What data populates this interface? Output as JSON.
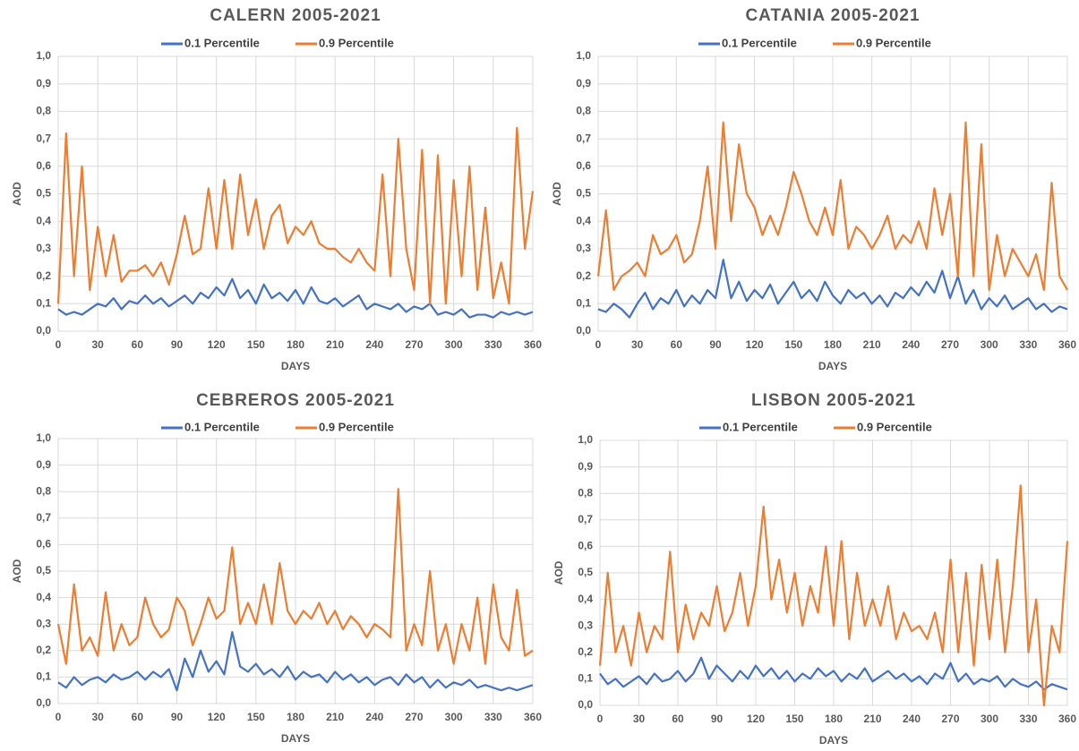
{
  "chart_data": [
    {
      "type": "line",
      "title": "CALERN 2005-2021",
      "xlabel": "DAYS",
      "ylabel": "AOD",
      "grid": true,
      "legend": "top",
      "xlim": [
        0,
        360
      ],
      "ylim": [
        0,
        1
      ],
      "xticks": [
        0,
        30,
        60,
        90,
        120,
        150,
        180,
        210,
        240,
        270,
        300,
        330,
        360
      ],
      "yticks": [
        {
          "value": 0,
          "label": "0,0"
        },
        {
          "value": 0.1,
          "label": "0,1"
        },
        {
          "value": 0.2,
          "label": "0,2"
        },
        {
          "value": 0.3,
          "label": "0,3"
        },
        {
          "value": 0.4,
          "label": "0,4"
        },
        {
          "value": 0.5,
          "label": "0,5"
        },
        {
          "value": 0.6,
          "label": "0,6"
        },
        {
          "value": 0.7,
          "label": "0,7"
        },
        {
          "value": 0.8,
          "label": "0,8"
        },
        {
          "value": 0.9,
          "label": "0,9"
        },
        {
          "value": 1,
          "label": "1,0"
        }
      ],
      "x": [
        0,
        6,
        12,
        18,
        24,
        30,
        36,
        42,
        48,
        54,
        60,
        66,
        72,
        78,
        84,
        90,
        96,
        102,
        108,
        114,
        120,
        126,
        132,
        138,
        144,
        150,
        156,
        162,
        168,
        174,
        180,
        186,
        192,
        198,
        204,
        210,
        216,
        222,
        228,
        234,
        240,
        246,
        252,
        258,
        264,
        270,
        276,
        282,
        288,
        294,
        300,
        306,
        312,
        318,
        324,
        330,
        336,
        342,
        348,
        354,
        360
      ],
      "series": [
        {
          "name": "0.1 Percentile",
          "color": "#4472c4",
          "values": [
            0.08,
            0.06,
            0.07,
            0.06,
            0.08,
            0.1,
            0.09,
            0.12,
            0.08,
            0.11,
            0.1,
            0.13,
            0.1,
            0.12,
            0.09,
            0.11,
            0.13,
            0.1,
            0.14,
            0.12,
            0.16,
            0.13,
            0.19,
            0.12,
            0.15,
            0.1,
            0.17,
            0.12,
            0.14,
            0.11,
            0.15,
            0.1,
            0.16,
            0.11,
            0.1,
            0.12,
            0.09,
            0.11,
            0.13,
            0.08,
            0.1,
            0.09,
            0.08,
            0.1,
            0.07,
            0.09,
            0.08,
            0.1,
            0.06,
            0.07,
            0.06,
            0.08,
            0.05,
            0.06,
            0.06,
            0.05,
            0.07,
            0.06,
            0.07,
            0.06,
            0.07
          ]
        },
        {
          "name": "0.9 Percentile",
          "color": "#ed7d31",
          "values": [
            0.1,
            0.72,
            0.2,
            0.6,
            0.15,
            0.38,
            0.2,
            0.35,
            0.18,
            0.22,
            0.22,
            0.24,
            0.2,
            0.25,
            0.17,
            0.28,
            0.42,
            0.28,
            0.3,
            0.52,
            0.3,
            0.55,
            0.3,
            0.57,
            0.35,
            0.48,
            0.3,
            0.42,
            0.46,
            0.32,
            0.38,
            0.35,
            0.4,
            0.32,
            0.3,
            0.3,
            0.27,
            0.25,
            0.3,
            0.25,
            0.22,
            0.57,
            0.2,
            0.7,
            0.3,
            0.15,
            0.66,
            0.1,
            0.64,
            0.1,
            0.55,
            0.2,
            0.6,
            0.15,
            0.45,
            0.12,
            0.25,
            0.1,
            0.74,
            0.3,
            0.51
          ]
        }
      ]
    },
    {
      "type": "line",
      "title": "CATANIA 2005-2021",
      "xlabel": "DAYS",
      "ylabel": "AOD",
      "grid": true,
      "legend": "top",
      "xlim": [
        0,
        360
      ],
      "ylim": [
        0,
        1
      ],
      "xticks": [
        0,
        30,
        60,
        90,
        120,
        150,
        180,
        210,
        240,
        270,
        300,
        330,
        360
      ],
      "yticks": [
        {
          "value": 0,
          "label": "0,0"
        },
        {
          "value": 0.1,
          "label": "0,1"
        },
        {
          "value": 0.2,
          "label": "0,2"
        },
        {
          "value": 0.3,
          "label": "0,3"
        },
        {
          "value": 0.4,
          "label": "0,4"
        },
        {
          "value": 0.5,
          "label": "0,5"
        },
        {
          "value": 0.6,
          "label": "0,6"
        },
        {
          "value": 0.7,
          "label": "0,7"
        },
        {
          "value": 0.8,
          "label": "0,8"
        },
        {
          "value": 0.9,
          "label": "0,9"
        },
        {
          "value": 1,
          "label": "1,0"
        }
      ],
      "x": [
        0,
        6,
        12,
        18,
        24,
        30,
        36,
        42,
        48,
        54,
        60,
        66,
        72,
        78,
        84,
        90,
        96,
        102,
        108,
        114,
        120,
        126,
        132,
        138,
        144,
        150,
        156,
        162,
        168,
        174,
        180,
        186,
        192,
        198,
        204,
        210,
        216,
        222,
        228,
        234,
        240,
        246,
        252,
        258,
        264,
        270,
        276,
        282,
        288,
        294,
        300,
        306,
        312,
        318,
        324,
        330,
        336,
        342,
        348,
        354,
        360
      ],
      "series": [
        {
          "name": "0.1 Percentile",
          "color": "#4472c4",
          "values": [
            0.08,
            0.07,
            0.1,
            0.08,
            0.05,
            0.1,
            0.14,
            0.08,
            0.12,
            0.1,
            0.15,
            0.09,
            0.13,
            0.1,
            0.15,
            0.12,
            0.26,
            0.12,
            0.18,
            0.11,
            0.15,
            0.12,
            0.17,
            0.1,
            0.14,
            0.18,
            0.12,
            0.15,
            0.11,
            0.18,
            0.13,
            0.1,
            0.15,
            0.12,
            0.14,
            0.1,
            0.13,
            0.09,
            0.14,
            0.12,
            0.16,
            0.13,
            0.18,
            0.14,
            0.22,
            0.12,
            0.2,
            0.1,
            0.15,
            0.08,
            0.12,
            0.09,
            0.13,
            0.08,
            0.1,
            0.12,
            0.08,
            0.1,
            0.07,
            0.09,
            0.08
          ]
        },
        {
          "name": "0.9 Percentile",
          "color": "#ed7d31",
          "values": [
            0.2,
            0.44,
            0.15,
            0.2,
            0.22,
            0.25,
            0.2,
            0.35,
            0.28,
            0.3,
            0.35,
            0.25,
            0.28,
            0.4,
            0.6,
            0.3,
            0.76,
            0.4,
            0.68,
            0.5,
            0.45,
            0.35,
            0.42,
            0.35,
            0.45,
            0.58,
            0.5,
            0.4,
            0.35,
            0.45,
            0.35,
            0.55,
            0.3,
            0.38,
            0.35,
            0.3,
            0.35,
            0.42,
            0.3,
            0.35,
            0.32,
            0.4,
            0.3,
            0.52,
            0.35,
            0.5,
            0.2,
            0.76,
            0.2,
            0.68,
            0.15,
            0.35,
            0.2,
            0.3,
            0.25,
            0.2,
            0.28,
            0.15,
            0.54,
            0.2,
            0.15
          ]
        }
      ]
    },
    {
      "type": "line",
      "title": "CEBREROS 2005-2021",
      "xlabel": "DAYS",
      "ylabel": "AOD",
      "grid": true,
      "legend": "top",
      "xlim": [
        0,
        360
      ],
      "ylim": [
        0,
        1
      ],
      "xticks": [
        0,
        30,
        60,
        90,
        120,
        150,
        180,
        210,
        240,
        270,
        300,
        330,
        360
      ],
      "yticks": [
        {
          "value": 0,
          "label": "0,0"
        },
        {
          "value": 0.1,
          "label": "0,1"
        },
        {
          "value": 0.2,
          "label": "0,2"
        },
        {
          "value": 0.3,
          "label": "0,3"
        },
        {
          "value": 0.4,
          "label": "0,4"
        },
        {
          "value": 0.5,
          "label": "0,5"
        },
        {
          "value": 0.6,
          "label": "0,6"
        },
        {
          "value": 0.7,
          "label": "0,7"
        },
        {
          "value": 0.8,
          "label": "0,8"
        },
        {
          "value": 0.9,
          "label": "0,9"
        },
        {
          "value": 1,
          "label": "1,0"
        }
      ],
      "x": [
        0,
        6,
        12,
        18,
        24,
        30,
        36,
        42,
        48,
        54,
        60,
        66,
        72,
        78,
        84,
        90,
        96,
        102,
        108,
        114,
        120,
        126,
        132,
        138,
        144,
        150,
        156,
        162,
        168,
        174,
        180,
        186,
        192,
        198,
        204,
        210,
        216,
        222,
        228,
        234,
        240,
        246,
        252,
        258,
        264,
        270,
        276,
        282,
        288,
        294,
        300,
        306,
        312,
        318,
        324,
        330,
        336,
        342,
        348,
        354,
        360
      ],
      "series": [
        {
          "name": "0.1 Percentile",
          "color": "#4472c4",
          "values": [
            0.08,
            0.06,
            0.1,
            0.07,
            0.09,
            0.1,
            0.08,
            0.11,
            0.09,
            0.1,
            0.12,
            0.09,
            0.12,
            0.1,
            0.13,
            0.05,
            0.17,
            0.1,
            0.2,
            0.12,
            0.16,
            0.11,
            0.27,
            0.14,
            0.12,
            0.15,
            0.11,
            0.13,
            0.1,
            0.14,
            0.09,
            0.12,
            0.1,
            0.11,
            0.08,
            0.12,
            0.09,
            0.11,
            0.08,
            0.1,
            0.07,
            0.09,
            0.1,
            0.07,
            0.11,
            0.08,
            0.1,
            0.06,
            0.09,
            0.06,
            0.08,
            0.07,
            0.09,
            0.06,
            0.07,
            0.06,
            0.05,
            0.06,
            0.05,
            0.06,
            0.07
          ]
        },
        {
          "name": "0.9 Percentile",
          "color": "#ed7d31",
          "values": [
            0.3,
            0.15,
            0.45,
            0.2,
            0.25,
            0.18,
            0.42,
            0.2,
            0.3,
            0.22,
            0.25,
            0.4,
            0.3,
            0.25,
            0.28,
            0.4,
            0.35,
            0.22,
            0.3,
            0.4,
            0.32,
            0.35,
            0.59,
            0.3,
            0.38,
            0.3,
            0.45,
            0.3,
            0.53,
            0.35,
            0.3,
            0.35,
            0.32,
            0.38,
            0.3,
            0.35,
            0.28,
            0.33,
            0.3,
            0.25,
            0.3,
            0.28,
            0.25,
            0.81,
            0.2,
            0.3,
            0.22,
            0.5,
            0.2,
            0.3,
            0.15,
            0.3,
            0.2,
            0.4,
            0.15,
            0.45,
            0.25,
            0.2,
            0.43,
            0.18,
            0.2
          ]
        }
      ]
    },
    {
      "type": "line",
      "title": "LISBON 2005-2021",
      "xlabel": "DAYS",
      "ylabel": "AOD",
      "grid": true,
      "legend": "top",
      "xlim": [
        0,
        360
      ],
      "ylim": [
        0,
        1
      ],
      "xticks": [
        0,
        30,
        60,
        90,
        120,
        150,
        180,
        210,
        240,
        270,
        300,
        330,
        360
      ],
      "yticks": [
        {
          "value": 0,
          "label": "0,0"
        },
        {
          "value": 0.1,
          "label": "0,1"
        },
        {
          "value": 0.2,
          "label": "0,2"
        },
        {
          "value": 0.3,
          "label": "0,3"
        },
        {
          "value": 0.4,
          "label": "0,4"
        },
        {
          "value": 0.5,
          "label": "0,5"
        },
        {
          "value": 0.6,
          "label": "0,6"
        },
        {
          "value": 0.7,
          "label": "0,7"
        },
        {
          "value": 0.8,
          "label": "0,8"
        },
        {
          "value": 0.9,
          "label": "0,9"
        },
        {
          "value": 1,
          "label": "1,0"
        }
      ],
      "x": [
        0,
        6,
        12,
        18,
        24,
        30,
        36,
        42,
        48,
        54,
        60,
        66,
        72,
        78,
        84,
        90,
        96,
        102,
        108,
        114,
        120,
        126,
        132,
        138,
        144,
        150,
        156,
        162,
        168,
        174,
        180,
        186,
        192,
        198,
        204,
        210,
        216,
        222,
        228,
        234,
        240,
        246,
        252,
        258,
        264,
        270,
        276,
        282,
        288,
        294,
        300,
        306,
        312,
        318,
        324,
        330,
        336,
        342,
        348,
        354,
        360
      ],
      "series": [
        {
          "name": "0.1 Percentile",
          "color": "#4472c4",
          "values": [
            0.12,
            0.08,
            0.1,
            0.07,
            0.09,
            0.11,
            0.08,
            0.12,
            0.09,
            0.1,
            0.13,
            0.09,
            0.12,
            0.18,
            0.1,
            0.15,
            0.12,
            0.09,
            0.13,
            0.1,
            0.15,
            0.11,
            0.14,
            0.1,
            0.13,
            0.09,
            0.12,
            0.1,
            0.14,
            0.11,
            0.13,
            0.09,
            0.12,
            0.1,
            0.14,
            0.09,
            0.11,
            0.13,
            0.1,
            0.12,
            0.09,
            0.11,
            0.08,
            0.12,
            0.1,
            0.16,
            0.09,
            0.12,
            0.08,
            0.1,
            0.09,
            0.11,
            0.07,
            0.1,
            0.08,
            0.07,
            0.09,
            0.06,
            0.08,
            0.07,
            0.06
          ]
        },
        {
          "name": "0.9 Percentile",
          "color": "#ed7d31",
          "values": [
            0.15,
            0.5,
            0.2,
            0.3,
            0.15,
            0.35,
            0.2,
            0.3,
            0.25,
            0.58,
            0.2,
            0.38,
            0.25,
            0.35,
            0.3,
            0.45,
            0.28,
            0.35,
            0.5,
            0.3,
            0.45,
            0.75,
            0.4,
            0.55,
            0.35,
            0.5,
            0.3,
            0.45,
            0.35,
            0.6,
            0.3,
            0.62,
            0.25,
            0.5,
            0.3,
            0.4,
            0.3,
            0.45,
            0.25,
            0.35,
            0.28,
            0.3,
            0.25,
            0.35,
            0.2,
            0.55,
            0.2,
            0.5,
            0.15,
            0.53,
            0.25,
            0.55,
            0.2,
            0.45,
            0.83,
            0.2,
            0.4,
            0.0,
            0.3,
            0.2,
            0.62
          ]
        }
      ]
    }
  ]
}
